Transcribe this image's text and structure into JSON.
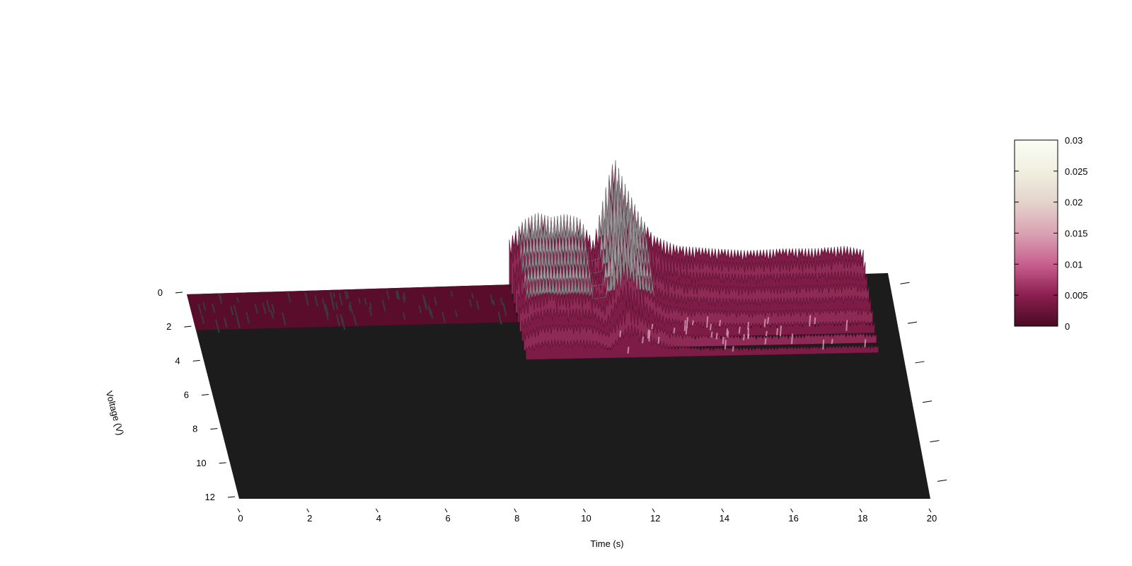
{
  "chart_data": {
    "type": "surface",
    "xlabel": "Time (s)",
    "ylabel": "Voltage (V)",
    "xlim": [
      0,
      20
    ],
    "ylim": [
      0,
      12
    ],
    "zlim": [
      0,
      0.03
    ],
    "x_ticks": [
      "0",
      "2",
      "4",
      "6",
      "8",
      "10",
      "12",
      "14",
      "16",
      "18",
      "20"
    ],
    "y_ticks": [
      "0",
      "2",
      "4",
      "6",
      "8",
      "10",
      "12"
    ],
    "colorbar": {
      "ticks": [
        "0",
        "0.005",
        "0.01",
        "0.015",
        "0.02",
        "0.025",
        "0.03"
      ],
      "colors": [
        "#4a0a22",
        "#8b1f4f",
        "#c8608f",
        "#d9a3b3",
        "#e4d3cc",
        "#f0f0e0",
        "#fbfdf4"
      ]
    },
    "surface": {
      "floor_color": "#1c1c1c",
      "low_band_color": "#5a0d2a",
      "active_region_x": [
        9.2,
        19.3
      ],
      "active_region_y": [
        0,
        4.2
      ],
      "peak_profile": [
        {
          "x": 9.2,
          "z": 0.006
        },
        {
          "x": 9.6,
          "z": 0.0085
        },
        {
          "x": 10.0,
          "z": 0.0095
        },
        {
          "x": 10.4,
          "z": 0.0088
        },
        {
          "x": 10.8,
          "z": 0.0092
        },
        {
          "x": 11.2,
          "z": 0.0086
        },
        {
          "x": 11.6,
          "z": 0.0055
        },
        {
          "x": 12.0,
          "z": 0.0135
        },
        {
          "x": 12.2,
          "z": 0.0165
        },
        {
          "x": 12.5,
          "z": 0.013
        },
        {
          "x": 12.9,
          "z": 0.009
        },
        {
          "x": 13.3,
          "z": 0.006
        },
        {
          "x": 14.0,
          "z": 0.0045
        },
        {
          "x": 15.0,
          "z": 0.004
        },
        {
          "x": 16.0,
          "z": 0.0036
        },
        {
          "x": 17.0,
          "z": 0.0037
        },
        {
          "x": 18.0,
          "z": 0.0036
        },
        {
          "x": 18.8,
          "z": 0.0038
        },
        {
          "x": 19.3,
          "z": 0.0032
        }
      ]
    }
  }
}
